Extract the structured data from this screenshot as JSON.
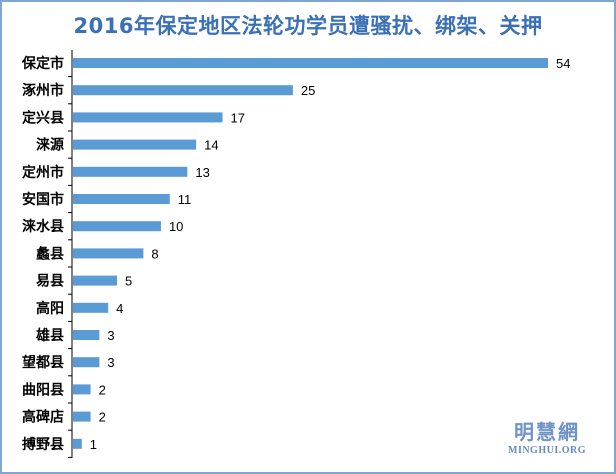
{
  "chart_data": {
    "type": "bar",
    "orientation": "horizontal",
    "title": "2016年保定地区法轮功学员遭骚扰、绑架、关押",
    "categories": [
      "保定市",
      "涿州市",
      "定兴县",
      "涞源",
      "定州市",
      "安国市",
      "涞水县",
      "蠡县",
      "易县",
      "高阳",
      "雄县",
      "望都县",
      "曲阳县",
      "高碑店",
      "搏野县"
    ],
    "values": [
      54,
      25,
      17,
      14,
      13,
      11,
      10,
      8,
      5,
      4,
      3,
      3,
      2,
      2,
      1
    ],
    "xlim": [
      0,
      54
    ],
    "grid": false,
    "data_labels": true,
    "legend": false,
    "colors": {
      "bar": "#5b9bd5",
      "title": "#3a70b6",
      "axis": "#000000",
      "frame": "#7ea6cf"
    }
  },
  "watermark": {
    "cn": "明慧網",
    "en": "MINGHUI.ORG"
  }
}
